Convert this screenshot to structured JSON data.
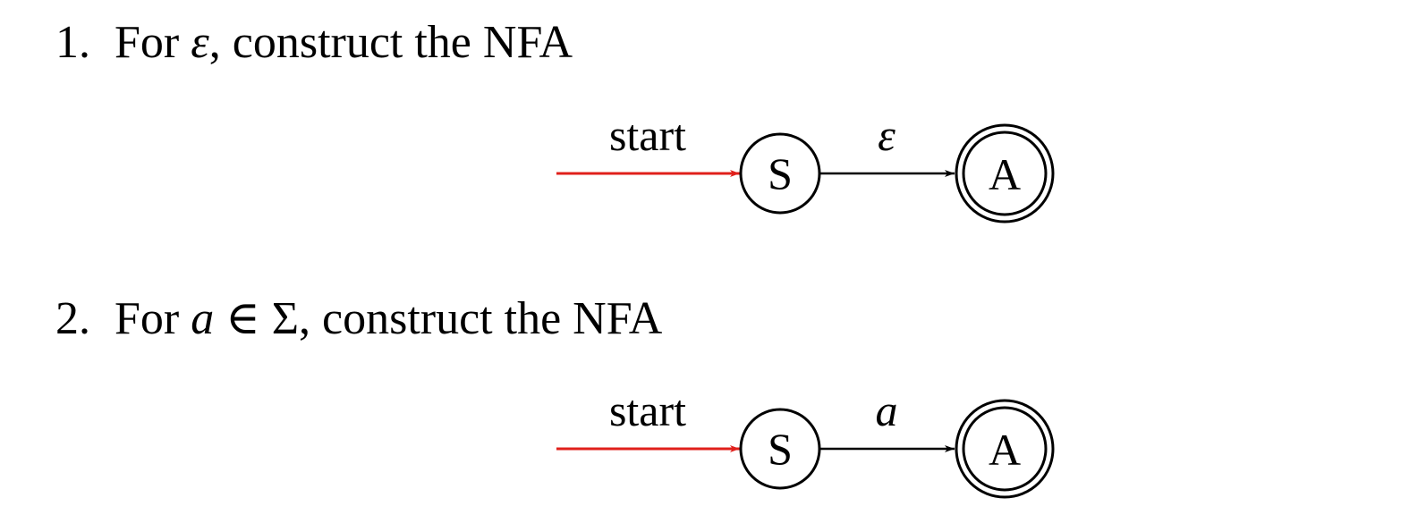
{
  "items": [
    {
      "number": "1.",
      "text_before": "For ",
      "symbol": "ε",
      "text_after": ", construct the NFA",
      "nfa": {
        "start_label": "start",
        "start_state": "S",
        "accept_state": "A",
        "transition_label": "ε",
        "start_arrow_color": "#e0201b"
      }
    },
    {
      "number": "2.",
      "text_before": "For ",
      "symbol": "a",
      "relation": " ∈ ",
      "set": "Σ",
      "text_after": ", construct the NFA",
      "nfa": {
        "start_label": "start",
        "start_state": "S",
        "accept_state": "A",
        "transition_label": "a",
        "start_arrow_color": "#e0201b"
      }
    }
  ]
}
